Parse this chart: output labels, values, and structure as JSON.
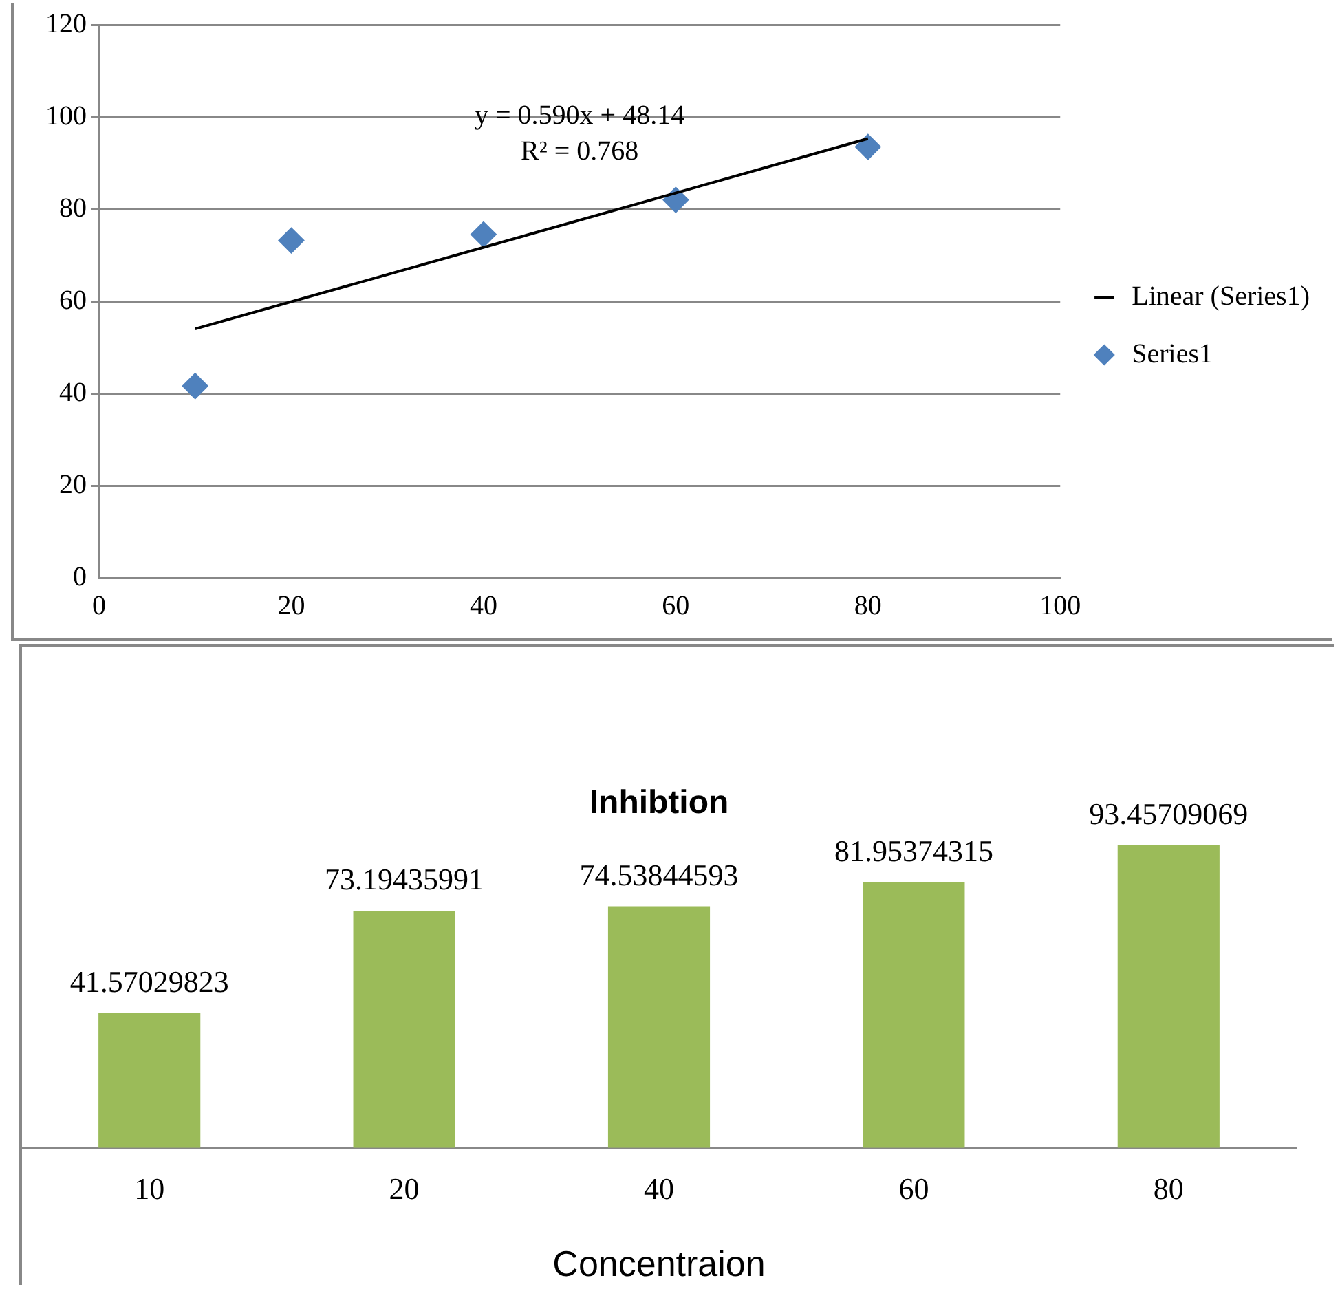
{
  "chart_data": [
    {
      "type": "scatter",
      "marker": "diamond",
      "legend": "right",
      "grid": "y",
      "xlim": [
        0,
        100
      ],
      "xticks": [
        0,
        20,
        40,
        60,
        80,
        100
      ],
      "ylim": [
        0,
        120
      ],
      "yticks": [
        0,
        20,
        40,
        60,
        80,
        100,
        120
      ],
      "annotations": [
        "y = 0.590x + 48.14",
        "R² = 0.768"
      ],
      "series": [
        {
          "name": "Series1",
          "color": "#4f81bd",
          "x": [
            10,
            20,
            40,
            60,
            80
          ],
          "values": [
            41.6,
            73.2,
            74.5,
            82.0,
            93.5
          ]
        },
        {
          "name": "Linear (Series1)",
          "type": "line",
          "marker": "none",
          "color": "#000000",
          "x": [
            10,
            80
          ],
          "values": [
            54.0,
            95.3
          ]
        }
      ]
    },
    {
      "type": "bar",
      "title": "Inhibtion",
      "xlabel": "Concentraion",
      "grid": false,
      "data_labels": true,
      "color": "#9bbb59",
      "categories": [
        "10",
        "20",
        "40",
        "60",
        "80"
      ],
      "values": [
        41.57029823,
        73.19435991,
        74.53844593,
        81.95374315,
        93.45709069
      ]
    }
  ]
}
